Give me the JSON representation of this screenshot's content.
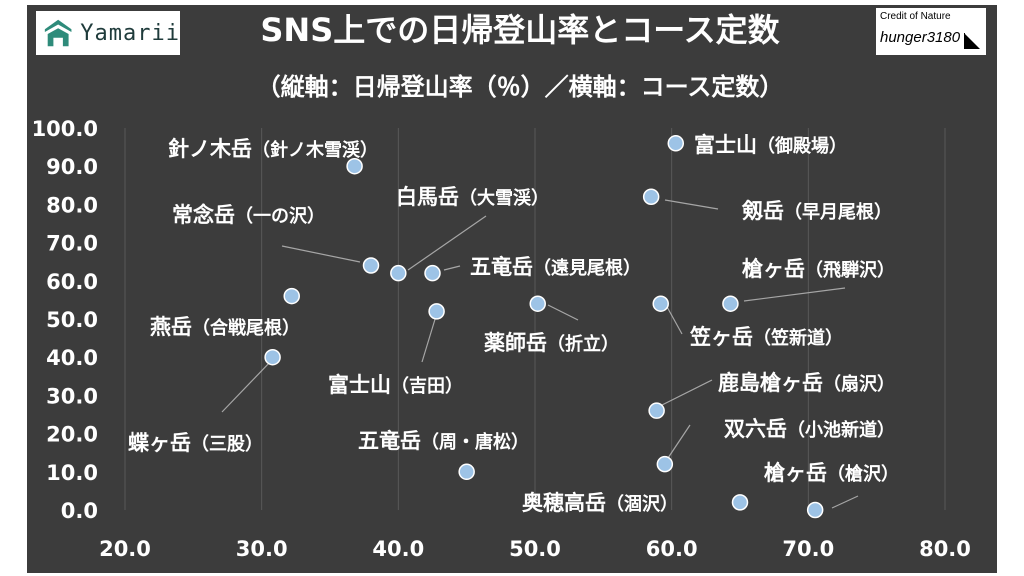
{
  "branding": {
    "logo_text": "Yamarii",
    "credit_line1": "Credit of Nature",
    "credit_line2": "hunger3180"
  },
  "colors": {
    "background": "#3c3c3c",
    "marker_fill": "#9dc3e6",
    "marker_stroke": "#ffffff",
    "text": "#ffffff",
    "gridline": "#595959",
    "leader_line": "#a6a6a6",
    "logo_accent": "#2e8b7a"
  },
  "chart_data": {
    "type": "scatter",
    "title": "SNS上での日帰登山率とコース定数",
    "subtitle": "（縦軸：日帰登山率（％）／横軸：コース定数）",
    "xlim": [
      20.0,
      80.0
    ],
    "ylim": [
      0.0,
      100.0
    ],
    "xticks": [
      "20.0",
      "30.0",
      "40.0",
      "50.0",
      "60.0",
      "70.0",
      "80.0"
    ],
    "yticks": [
      "0.0",
      "10.0",
      "20.0",
      "30.0",
      "40.0",
      "50.0",
      "60.0",
      "70.0",
      "80.0",
      "90.0",
      "100.0"
    ],
    "grid": "vertical",
    "points": [
      {
        "name": "針ノ木岳",
        "route": "（針ノ木雪渓）",
        "x": 36.8,
        "y": 90.0
      },
      {
        "name": "富士山",
        "route": "（御殿場）",
        "x": 60.3,
        "y": 96.0
      },
      {
        "name": "剱岳",
        "route": "（早月尾根）",
        "x": 58.5,
        "y": 82.0
      },
      {
        "name": "常念岳",
        "route": "（一の沢）",
        "x": 38.0,
        "y": 64.0
      },
      {
        "name": "白馬岳",
        "route": "（大雪渓）",
        "x": 40.0,
        "y": 62.0
      },
      {
        "name": "五竜岳",
        "route": "（遠見尾根）",
        "x": 42.5,
        "y": 62.0
      },
      {
        "name": "槍ヶ岳",
        "route": "（飛騨沢）",
        "x": 64.3,
        "y": 54.0
      },
      {
        "name": "燕岳",
        "route": "（合戦尾根）",
        "x": 32.2,
        "y": 56.0
      },
      {
        "name": "薬師岳",
        "route": "（折立）",
        "x": 50.2,
        "y": 54.0
      },
      {
        "name": "笠ヶ岳",
        "route": "（笠新道）",
        "x": 59.2,
        "y": 54.0
      },
      {
        "name": "富士山",
        "route": "（吉田）",
        "x": 42.8,
        "y": 52.0
      },
      {
        "name": "蝶ヶ岳",
        "route": "（三股）",
        "x": 30.8,
        "y": 40.0
      },
      {
        "name": "鹿島槍ヶ岳",
        "route": "（扇沢）",
        "x": 58.9,
        "y": 26.0
      },
      {
        "name": "双六岳",
        "route": "（小池新道）",
        "x": 59.5,
        "y": 12.0
      },
      {
        "name": "五竜岳",
        "route": "（周・唐松）",
        "x": 45.0,
        "y": 10.0
      },
      {
        "name": "奥穂高岳",
        "route": "（涸沢）",
        "x": 65.0,
        "y": 2.0
      },
      {
        "name": "槍ヶ岳",
        "route": "（槍沢）",
        "x": 70.5,
        "y": 0.0
      }
    ]
  }
}
